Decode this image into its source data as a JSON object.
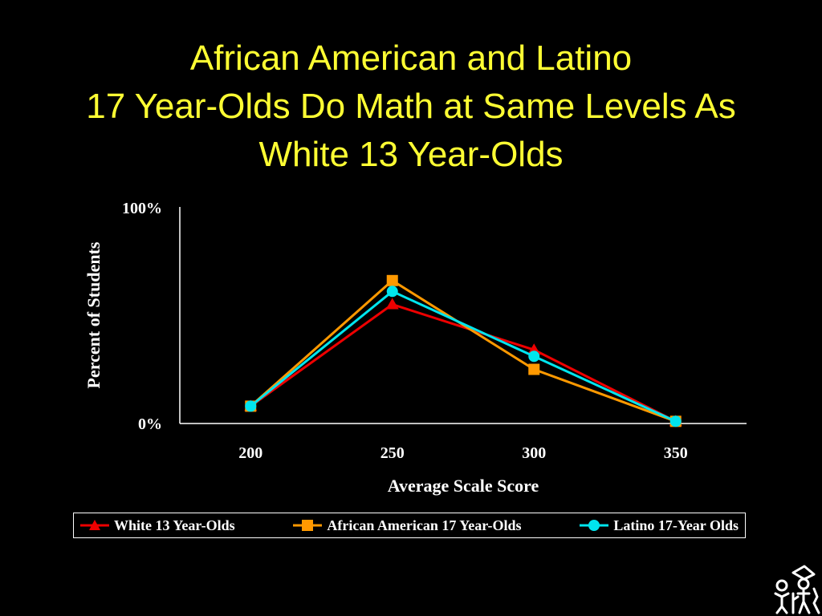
{
  "slide": {
    "title_lines": [
      "African American and Latino",
      "17 Year-Olds Do Math at Same Levels As",
      "White 13 Year-Olds"
    ],
    "colors": {
      "background": "#000000",
      "title": "#ffff33",
      "axis": "#ffffff"
    },
    "logo_icon": "people-group-icon"
  },
  "chart_data": {
    "type": "line",
    "title": "",
    "xlabel": "Average Scale Score",
    "ylabel": "Percent of Students",
    "x": [
      200,
      250,
      300,
      350
    ],
    "x_tick_labels": [
      "200",
      "250",
      "300",
      "350"
    ],
    "ylim": [
      0,
      100
    ],
    "y_tick_labels": [
      "0%",
      "100%"
    ],
    "grid": false,
    "legend_position": "bottom",
    "series": [
      {
        "name": "White 13 Year-Olds",
        "values": [
          8,
          55,
          34,
          1
        ],
        "color": "#ee0000",
        "marker": "triangle"
      },
      {
        "name": "African American 17 Year-Olds",
        "values": [
          8,
          66,
          25,
          1
        ],
        "color": "#ff9900",
        "marker": "square"
      },
      {
        "name": "Latino 17-Year Olds",
        "values": [
          8,
          61,
          31,
          1
        ],
        "color": "#00e5ee",
        "marker": "circle"
      }
    ]
  }
}
